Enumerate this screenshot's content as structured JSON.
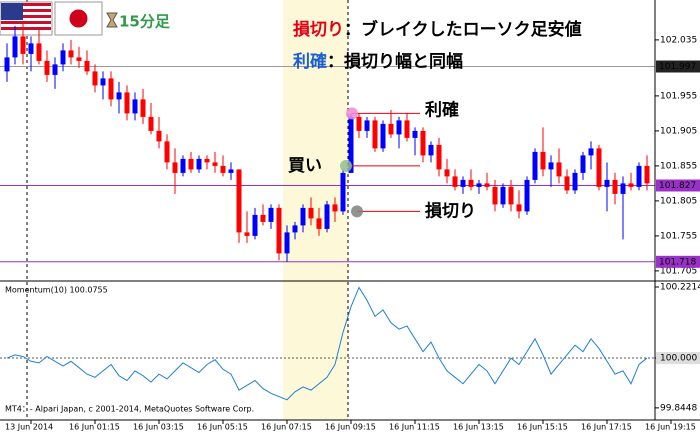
{
  "header": {
    "timeframe": "15分足",
    "rules": [
      {
        "label": "損切り",
        "text": "：ブレイクしたローソク足安値",
        "color": "#e60012"
      },
      {
        "label": "利確",
        "text": "：損切り幅と同幅",
        "color": "#1a5fd0"
      }
    ]
  },
  "footer": "MT4：- Alpari Japan, c 2001-2014, MetaQuotes Software Corp.",
  "chart_data": [
    {
      "type": "candlestick",
      "categories": [
        null,
        null,
        null,
        "13 Jun 2014",
        null,
        null,
        null,
        null,
        null,
        null,
        null,
        "16 Jun 01:15",
        null,
        null,
        null,
        null,
        null,
        null,
        null,
        "16 Jun 03:15",
        null,
        null,
        null,
        null,
        null,
        null,
        null,
        "16 Jun 05:15",
        null,
        null,
        null,
        null,
        null,
        null,
        null,
        "16 Jun 07:15",
        null,
        null,
        null,
        null,
        null,
        null,
        null,
        "16 Jun 09:15",
        null,
        null,
        null,
        null,
        null,
        null,
        null,
        "16 Jun 11:15",
        null,
        null,
        null,
        null,
        null,
        null,
        null,
        "16 Jun 13:15",
        null,
        null,
        null,
        null,
        null,
        null,
        null,
        "16 Jun 15:15",
        null,
        null,
        null,
        null,
        null,
        null,
        null,
        "16 Jun 17:15",
        null,
        null,
        null,
        null,
        null,
        null,
        null,
        "16 Jun 19:15"
      ],
      "open": [
        101.99,
        102.01,
        102.04,
        102.015,
        102.03,
        102.005,
        101.985,
        102.0,
        102.02,
        102.01,
        102.005,
        101.99,
        101.97,
        101.98,
        101.95,
        101.96,
        101.93,
        101.95,
        101.925,
        101.905,
        101.89,
        101.86,
        101.845,
        101.865,
        101.85,
        101.865,
        101.86,
        101.855,
        101.845,
        101.85,
        101.76,
        101.755,
        101.785,
        101.775,
        101.795,
        101.73,
        101.76,
        101.77,
        101.795,
        101.78,
        101.765,
        101.8,
        101.79,
        101.845,
        101.925,
        101.905,
        101.92,
        101.88,
        101.915,
        101.9,
        101.92,
        101.895,
        101.905,
        101.87,
        101.885,
        101.85,
        101.84,
        101.825,
        101.835,
        101.825,
        101.83,
        101.825,
        101.8,
        101.825,
        101.8,
        101.79,
        101.835,
        101.875,
        101.85,
        101.86,
        101.84,
        101.82,
        101.845,
        101.87,
        101.88,
        101.825,
        101.835,
        101.815,
        101.83,
        101.825,
        101.855,
        null,
        null,
        null
      ],
      "high": [
        102.03,
        102.055,
        102.06,
        102.04,
        102.05,
        102.02,
        102.01,
        102.03,
        102.035,
        102.025,
        102.02,
        102.0,
        101.99,
        101.99,
        101.975,
        101.97,
        101.96,
        101.965,
        101.945,
        101.925,
        101.9,
        101.88,
        101.87,
        101.875,
        101.87,
        101.87,
        101.875,
        101.87,
        101.86,
        101.85,
        101.79,
        101.795,
        101.8,
        101.8,
        101.8,
        101.77,
        101.775,
        101.8,
        101.81,
        101.795,
        101.805,
        101.81,
        101.85,
        101.93,
        101.93,
        101.925,
        101.925,
        101.92,
        101.935,
        101.925,
        101.93,
        101.91,
        101.91,
        101.89,
        101.895,
        101.865,
        101.85,
        101.84,
        101.85,
        101.835,
        101.845,
        101.835,
        101.83,
        101.835,
        101.82,
        101.84,
        101.88,
        101.91,
        101.87,
        101.88,
        101.85,
        101.85,
        101.875,
        101.89,
        101.885,
        101.86,
        101.845,
        101.84,
        101.845,
        101.86,
        101.87,
        null,
        null,
        null
      ],
      "low": [
        101.975,
        102.0,
        102.0,
        101.99,
        102.0,
        101.975,
        101.965,
        101.99,
        102.0,
        101.995,
        101.985,
        101.96,
        101.95,
        101.94,
        101.93,
        101.92,
        101.92,
        101.915,
        101.9,
        101.88,
        101.85,
        101.815,
        101.84,
        101.845,
        101.845,
        101.85,
        101.845,
        101.84,
        101.835,
        101.745,
        101.745,
        101.75,
        101.77,
        101.765,
        101.72,
        101.718,
        101.75,
        101.76,
        101.77,
        101.755,
        101.76,
        101.775,
        101.785,
        101.845,
        101.895,
        101.895,
        101.875,
        101.875,
        101.895,
        101.88,
        101.89,
        101.87,
        101.86,
        101.86,
        101.84,
        101.83,
        101.82,
        101.815,
        101.82,
        101.815,
        101.82,
        101.79,
        101.795,
        101.79,
        101.78,
        101.785,
        101.83,
        101.84,
        101.825,
        101.83,
        101.815,
        101.815,
        101.835,
        101.85,
        101.82,
        101.79,
        101.8,
        101.75,
        101.82,
        101.82,
        101.82,
        null,
        null,
        null
      ],
      "close": [
        102.01,
        102.04,
        102.015,
        102.03,
        102.005,
        101.985,
        102.0,
        102.02,
        102.01,
        102.005,
        101.99,
        101.97,
        101.98,
        101.95,
        101.96,
        101.93,
        101.95,
        101.925,
        101.905,
        101.89,
        101.86,
        101.845,
        101.865,
        101.85,
        101.865,
        101.86,
        101.855,
        101.845,
        101.85,
        101.76,
        101.755,
        101.785,
        101.775,
        101.795,
        101.73,
        101.76,
        101.77,
        101.795,
        101.78,
        101.765,
        101.8,
        101.79,
        101.845,
        101.925,
        101.905,
        101.92,
        101.88,
        101.915,
        101.9,
        101.92,
        101.895,
        101.905,
        101.87,
        101.885,
        101.85,
        101.84,
        101.825,
        101.835,
        101.825,
        101.83,
        101.825,
        101.8,
        101.825,
        101.8,
        101.79,
        101.835,
        101.875,
        101.85,
        101.86,
        101.84,
        101.82,
        101.845,
        101.87,
        101.88,
        101.825,
        101.835,
        101.815,
        101.83,
        101.825,
        101.855,
        101.83,
        null,
        null,
        null
      ],
      "up_color": "#0000ff",
      "down_color": "#ff0000",
      "ylim": [
        101.692,
        102.092
      ],
      "yticks": [
        102.035,
        101.955,
        101.905,
        101.855,
        101.805,
        101.755,
        101.705
      ],
      "price_lines": [
        {
          "value": 101.997,
          "color": "#9a9a9a",
          "label_bg": "#222222"
        },
        {
          "value": 101.827,
          "color": "#9b30c8",
          "label_bg": "#9b30c8"
        },
        {
          "value": 101.718,
          "color": "#9b30c8",
          "label_bg": "#9b30c8"
        }
      ],
      "trade_levels": [
        {
          "label": "利確",
          "value": 101.93,
          "label_color": "#1a5fd0",
          "marker_color": "#f28ad8"
        },
        {
          "label": "買い",
          "value": 101.855,
          "label_color": "#1a5fd0",
          "marker_color": "#8fbf8f"
        },
        {
          "label": "損切り",
          "value": 101.79,
          "label_color": "#e60012",
          "marker_color": "#808080"
        }
      ]
    },
    {
      "type": "line",
      "title": "Momentum(10) 100.0755",
      "color": "#1e7fd8",
      "values": [
        100.0,
        100.01,
        100.005,
        99.99,
        99.985,
        100.005,
        99.99,
        99.975,
        99.99,
        99.97,
        99.95,
        99.94,
        99.96,
        99.98,
        99.945,
        99.93,
        99.96,
        99.945,
        99.925,
        99.95,
        99.935,
        99.96,
        99.985,
        99.97,
        99.955,
        99.98,
        99.995,
        99.965,
        99.95,
        99.9,
        99.915,
        99.93,
        99.905,
        99.89,
        99.88,
        99.87,
        99.895,
        99.91,
        99.9,
        99.92,
        99.94,
        99.98,
        100.08,
        100.16,
        100.22,
        100.18,
        100.13,
        100.15,
        100.11,
        100.09,
        100.1,
        100.06,
        100.02,
        100.05,
        100.0,
        99.96,
        99.94,
        99.92,
        99.95,
        99.98,
        99.96,
        99.92,
        99.96,
        100.0,
        99.98,
        100.02,
        100.06,
        100.01,
        99.95,
        99.98,
        100.01,
        100.04,
        100.02,
        100.06,
        100.03,
        99.99,
        99.95,
        99.96,
        99.92,
        99.98,
        100.0,
        null,
        null,
        null
      ],
      "ylim": [
        99.807,
        100.237
      ],
      "yticks": [
        100.2214,
        {
          "value": 100,
          "label": "100.000"
        },
        99.8448
      ]
    }
  ]
}
